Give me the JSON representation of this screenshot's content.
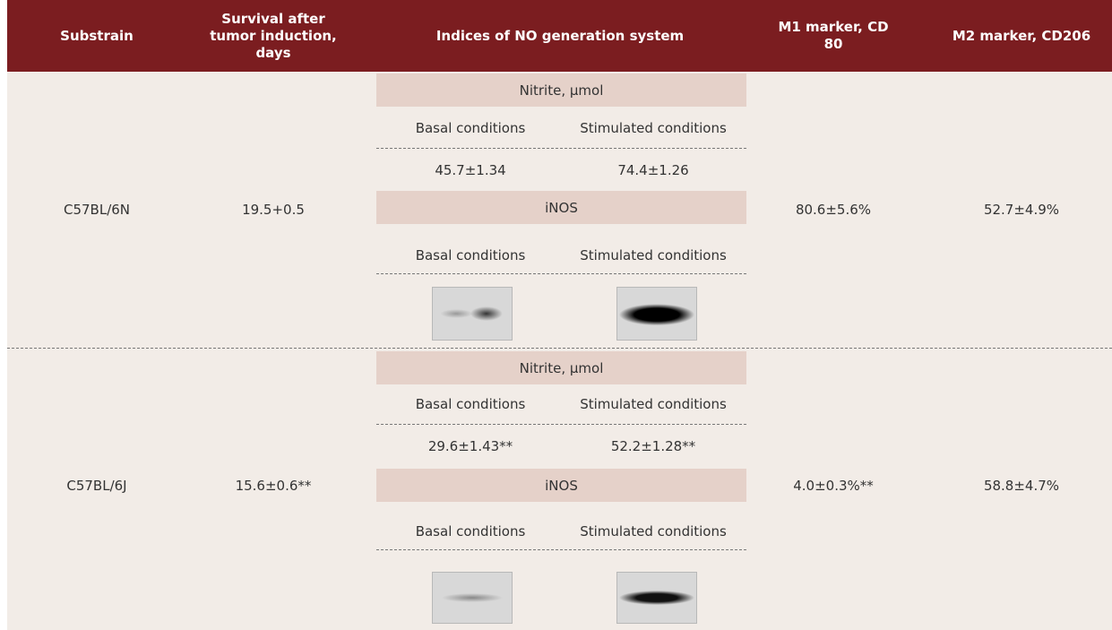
{
  "table": {
    "header": [
      "Substrain",
      "Survival after tumor induction, days",
      "Indices of NO generation system",
      "M1 marker, CD 80",
      "M2 marker, CD206"
    ],
    "rows": [
      {
        "substrain": "C57BL/6N",
        "survival": "19.5+0.5",
        "nitrite_label": "Nitrite, µmol",
        "nitrite_conditions": [
          "Basal conditions",
          "Stimulated conditions"
        ],
        "nitrite_values": [
          "45.7±1.34",
          "74.4±1.26"
        ],
        "inos_label": "iNOS",
        "inos_conditions": [
          "Basal conditions",
          "Stimulated conditions"
        ],
        "m1": "80.6±5.6%",
        "m2": "52.7±4.9%"
      },
      {
        "substrain": "C57BL/6J",
        "survival": "15.6±0.6**",
        "nitrite_label": "Nitrite, µmol",
        "nitrite_conditions": [
          "Basal conditions",
          "Stimulated conditions"
        ],
        "nitrite_values": [
          "29.6±1.43**",
          "52.2±1.28**"
        ],
        "inos_label": "iNOS",
        "inos_conditions": [
          "Basal conditions",
          "Stimulated conditions"
        ],
        "m1": "4.0±0.3%**",
        "m2": "58.8±4.7%"
      }
    ]
  }
}
